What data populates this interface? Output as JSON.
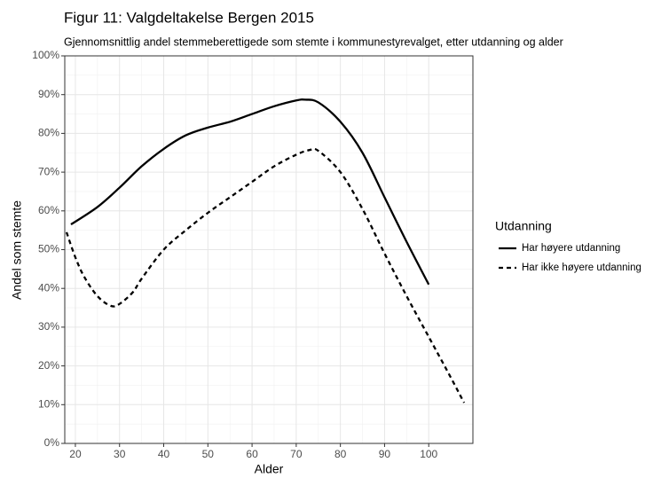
{
  "chart_data": {
    "type": "line",
    "title": "Figur 11: Valgdeltakelse Bergen 2015",
    "subtitle": "Gjennomsnittlig andel stemmeberettigede som stemte i kommunestyrevalget, etter utdanning og alder",
    "x_label": "Alder",
    "y_label": "Andel som stemte",
    "legend_title": "Utdanning",
    "legend_position": "right",
    "grid": true,
    "minor_grid": true,
    "xlim": [
      17.6,
      110
    ],
    "xticks": [
      20,
      30,
      40,
      50,
      60,
      70,
      80,
      90,
      100
    ],
    "ylim": [
      0,
      100
    ],
    "yticks": [
      {
        "value": 0,
        "label": "0%"
      },
      {
        "value": 10,
        "label": "10%"
      },
      {
        "value": 20,
        "label": "20%"
      },
      {
        "value": 30,
        "label": "30%"
      },
      {
        "value": 40,
        "label": "40%"
      },
      {
        "value": 50,
        "label": "50%"
      },
      {
        "value": 60,
        "label": "60%"
      },
      {
        "value": 70,
        "label": "70%"
      },
      {
        "value": 80,
        "label": "80%"
      },
      {
        "value": 90,
        "label": "90%"
      },
      {
        "value": 100,
        "label": "100%"
      }
    ],
    "series": [
      {
        "name": "Har høyere utdanning",
        "color": "#000000",
        "dash": "solid",
        "x": [
          19,
          25,
          30,
          35,
          40,
          45,
          50,
          55,
          60,
          65,
          70,
          72,
          75,
          80,
          85,
          90,
          95,
          100
        ],
        "values": [
          56.5,
          61,
          66,
          71.5,
          76,
          79.5,
          81.5,
          83,
          85,
          87,
          88.5,
          88.7,
          88,
          83,
          75,
          63.5,
          52,
          41
        ]
      },
      {
        "name": "Har ikke høyere utdanning",
        "color": "#000000",
        "dash": "dashed",
        "x": [
          18,
          20,
          22,
          25,
          28,
          30,
          33,
          35,
          40,
          45,
          50,
          55,
          60,
          65,
          70,
          73,
          75,
          80,
          85,
          90,
          95,
          100,
          105,
          108
        ],
        "values": [
          54.5,
          48,
          43,
          38,
          35.5,
          36,
          39,
          42.5,
          50,
          55,
          59.5,
          63.5,
          67.5,
          71.5,
          74.5,
          75.7,
          75.5,
          70,
          60.5,
          49,
          38,
          27.5,
          17,
          10.5
        ]
      }
    ]
  }
}
